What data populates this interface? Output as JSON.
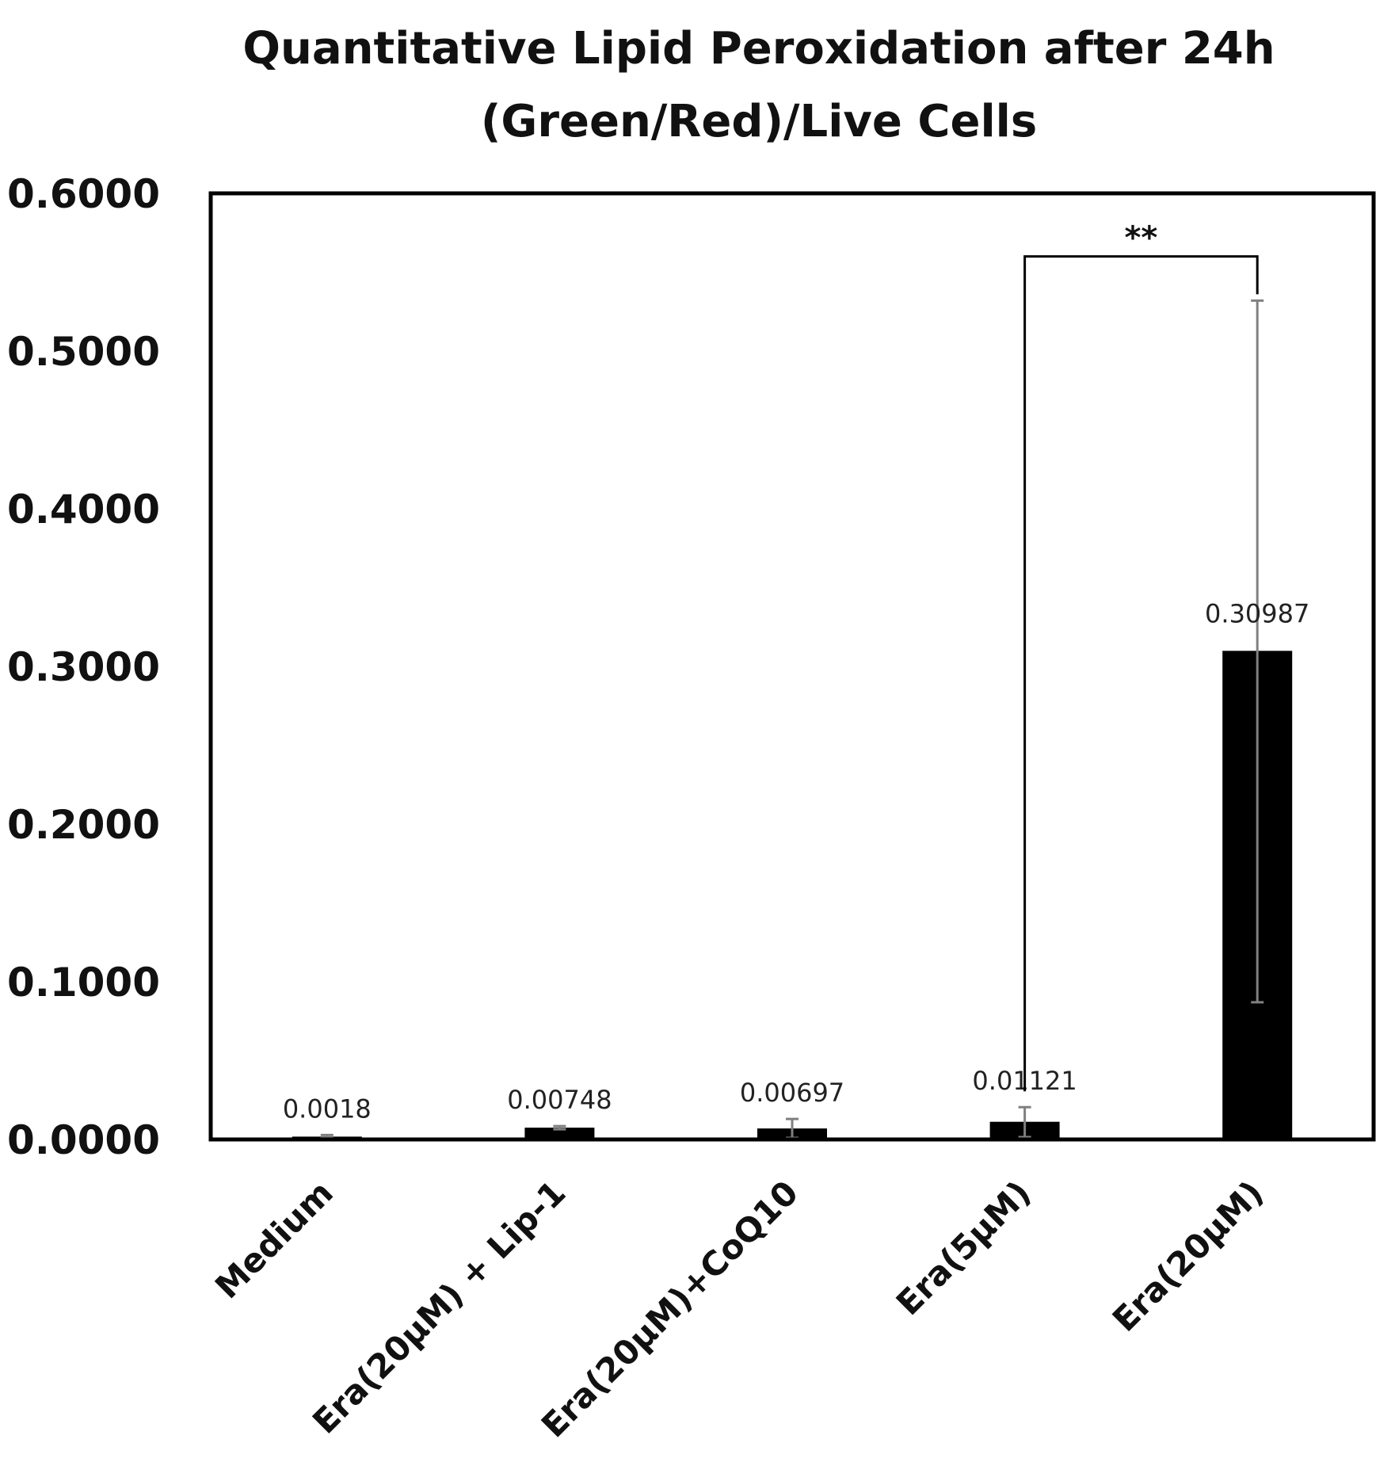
{
  "chart_data": {
    "type": "bar",
    "title_lines": [
      "Quantitative Lipid Peroxidation after 24h",
      "(Green/Red)/Live Cells"
    ],
    "xlabel": "",
    "ylabel": "",
    "categories": [
      "Medium",
      "Era(20μM) + Lip-1",
      "Era(20μM)+CoQ10",
      "Era(5μM)",
      "Era(20μM)"
    ],
    "values": [
      0.0018,
      0.00748,
      0.00697,
      0.01121,
      0.30987
    ],
    "data_labels": [
      "0.0018",
      "0.00748",
      "0.00697",
      "0.01121",
      "0.30987"
    ],
    "error_bars": [
      {
        "low": 0.0008,
        "high": 0.0028
      },
      {
        "low": 0.0065,
        "high": 0.0085
      },
      {
        "low": 0.001,
        "high": 0.013
      },
      {
        "low": 0.0015,
        "high": 0.0205
      },
      {
        "low": 0.087,
        "high": 0.532
      }
    ],
    "ylim": [
      0,
      0.6
    ],
    "yticks": [
      "0.0000",
      "0.1000",
      "0.2000",
      "0.3000",
      "0.4000",
      "0.5000",
      "0.6000"
    ],
    "grid": false,
    "legend": "none",
    "significance": {
      "from_category": 3,
      "to_category": 4,
      "label": "**",
      "y": 0.56
    },
    "colors": {
      "bar": "#000000",
      "error_bar": "#808080",
      "frame": "#000000"
    }
  }
}
